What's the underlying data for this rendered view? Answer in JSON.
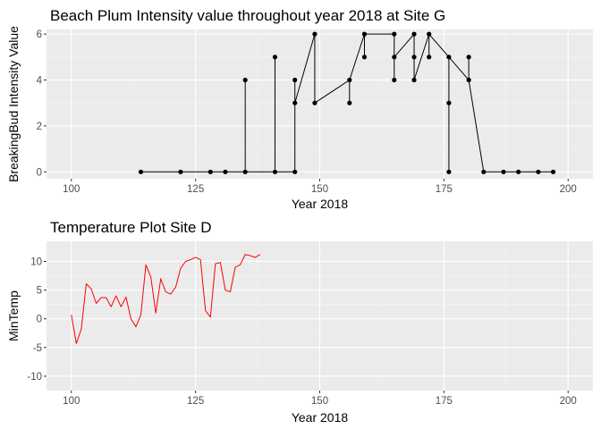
{
  "charts": [
    {
      "chart_data": {
        "type": "line",
        "title": "Beach Plum Intensity value throughout year 2018 at Site G",
        "xlabel": "Year 2018",
        "ylabel": "BreakingBud Intensity Value",
        "xlim": [
          95,
          205
        ],
        "ylim": [
          -0.3,
          6.2
        ],
        "xticks": [
          100,
          125,
          150,
          175,
          200
        ],
        "xtick_labels": [
          "100",
          "125",
          "150",
          "175",
          "200"
        ],
        "yticks": [
          0,
          2,
          4,
          6
        ],
        "ytick_labels": [
          "0",
          "2",
          "4",
          "6"
        ],
        "grid": true,
        "legend": "none",
        "series": [
          {
            "color": "#000000",
            "markers": true,
            "x": [
              114,
              122,
              128,
              131,
              135,
              135,
              141,
              141,
              145,
              145,
              145,
              149,
              149,
              156,
              156,
              159,
              159,
              165,
              165,
              165,
              169,
              169,
              169,
              172,
              172,
              176,
              176,
              176,
              180,
              180,
              183,
              187,
              190,
              194,
              197
            ],
            "y": [
              0,
              0,
              0,
              0,
              0,
              4,
              0,
              5,
              0,
              3,
              4,
              6,
              3,
              3,
              4,
              5,
              6,
              6,
              5,
              4,
              5,
              6,
              4,
              5,
              6,
              5,
              3,
              0,
              5,
              4,
              0,
              0,
              0,
              0,
              0
            ],
            "path": [
              [
                114,
                0
              ],
              [
                122,
                0
              ],
              [
                128,
                0
              ],
              [
                131,
                0
              ],
              [
                135,
                0
              ],
              [
                135,
                4
              ],
              [
                135,
                0
              ],
              [
                141,
                0
              ],
              [
                141,
                5
              ],
              [
                141,
                0
              ],
              [
                145,
                0
              ],
              [
                145,
                3
              ],
              [
                145,
                4
              ],
              [
                145,
                0
              ],
              [
                145,
                3
              ],
              [
                149,
                6
              ],
              [
                149,
                3
              ],
              [
                156,
                4
              ],
              [
                156,
                3
              ],
              [
                156,
                4
              ],
              [
                159,
                6
              ],
              [
                159,
                5
              ],
              [
                159,
                6
              ],
              [
                165,
                6
              ],
              [
                165,
                5
              ],
              [
                165,
                4
              ],
              [
                165,
                5
              ],
              [
                169,
                6
              ],
              [
                169,
                5
              ],
              [
                169,
                4
              ],
              [
                172,
                6
              ],
              [
                172,
                5
              ],
              [
                172,
                6
              ],
              [
                176,
                5
              ],
              [
                176,
                3
              ],
              [
                176,
                0
              ],
              [
                176,
                3
              ],
              [
                176,
                5
              ],
              [
                180,
                4
              ],
              [
                180,
                5
              ],
              [
                180,
                4
              ],
              [
                183,
                0
              ],
              [
                187,
                0
              ],
              [
                190,
                0
              ],
              [
                194,
                0
              ],
              [
                197,
                0
              ]
            ]
          }
        ]
      }
    },
    {
      "chart_data": {
        "type": "line",
        "title": "Temperature Plot Site D",
        "xlabel": "Year 2018",
        "ylabel": "MinTemp",
        "xlim": [
          95,
          205
        ],
        "ylim": [
          -12.5,
          13.5
        ],
        "xticks": [
          100,
          125,
          150,
          175,
          200
        ],
        "xtick_labels": [
          "100",
          "125",
          "150",
          "175",
          "200"
        ],
        "yticks": [
          -10,
          -5,
          0,
          5,
          10
        ],
        "ytick_labels": [
          "-10",
          "-5",
          "0",
          "5",
          "10"
        ],
        "grid": true,
        "legend": "none",
        "series": [
          {
            "color": "#ff0000",
            "markers": false,
            "x": [
              100,
              101,
              102,
              103,
              104,
              105,
              106,
              107,
              108,
              109,
              110,
              111,
              112,
              113,
              114,
              115,
              116,
              117,
              118,
              119,
              120,
              121,
              122,
              123,
              124,
              125,
              126,
              127,
              128,
              129,
              130,
              131,
              132,
              133,
              134,
              135,
              136,
              137,
              138
            ],
            "y": [
              0.7,
              -4.3,
              -1.8,
              6.1,
              5.2,
              2.7,
              3.7,
              3.7,
              2.1,
              4.0,
              2.1,
              3.8,
              0.0,
              -1.4,
              0.7,
              9.4,
              7.3,
              1.0,
              7.0,
              4.7,
              4.3,
              5.5,
              8.8,
              10.0,
              10.3,
              10.7,
              10.3,
              1.4,
              0.3,
              9.6,
              9.8,
              5.0,
              4.7,
              9.0,
              9.4,
              11.2,
              11.0,
              10.7,
              11.2
            ]
          }
        ]
      }
    }
  ]
}
